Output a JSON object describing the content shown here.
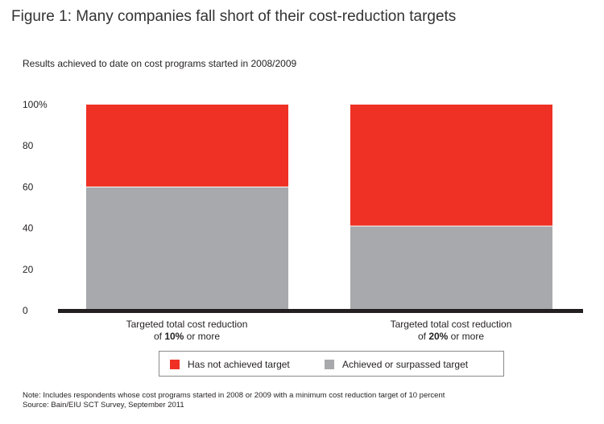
{
  "title": "Figure 1: Many companies fall short of their cost-reduction targets",
  "chart_data": {
    "type": "bar",
    "stacked": true,
    "title": "Figure 1: Many companies fall short of their cost-reduction targets",
    "subtitle": "Results achieved to date on cost programs started in 2008/2009",
    "categories": [
      {
        "prefix": "Targeted total cost reduction",
        "line2_pre": "of ",
        "line2_bold": "10%",
        "line2_post": " or more"
      },
      {
        "prefix": "Targeted total cost reduction",
        "line2_pre": "of ",
        "line2_bold": "20%",
        "line2_post": " or more"
      }
    ],
    "series": [
      {
        "name": "Achieved or surpassed target",
        "color": "#a7a9ac",
        "values": [
          60,
          41
        ]
      },
      {
        "name": "Has not achieved target",
        "color": "#ee3124",
        "values": [
          40,
          59
        ]
      }
    ],
    "yticks": [
      "100%",
      "80",
      "60",
      "40",
      "20",
      "0"
    ],
    "ylim": [
      0,
      100
    ],
    "legend_order": [
      "Has not achieved target",
      "Achieved or surpassed target"
    ]
  },
  "footer": {
    "note": "Note: Includes respondents whose cost programs started in 2008 or 2009 with a minimum cost reduction target of 10 percent",
    "source": "Source: Bain/EIU SCT Survey, September 2011"
  }
}
